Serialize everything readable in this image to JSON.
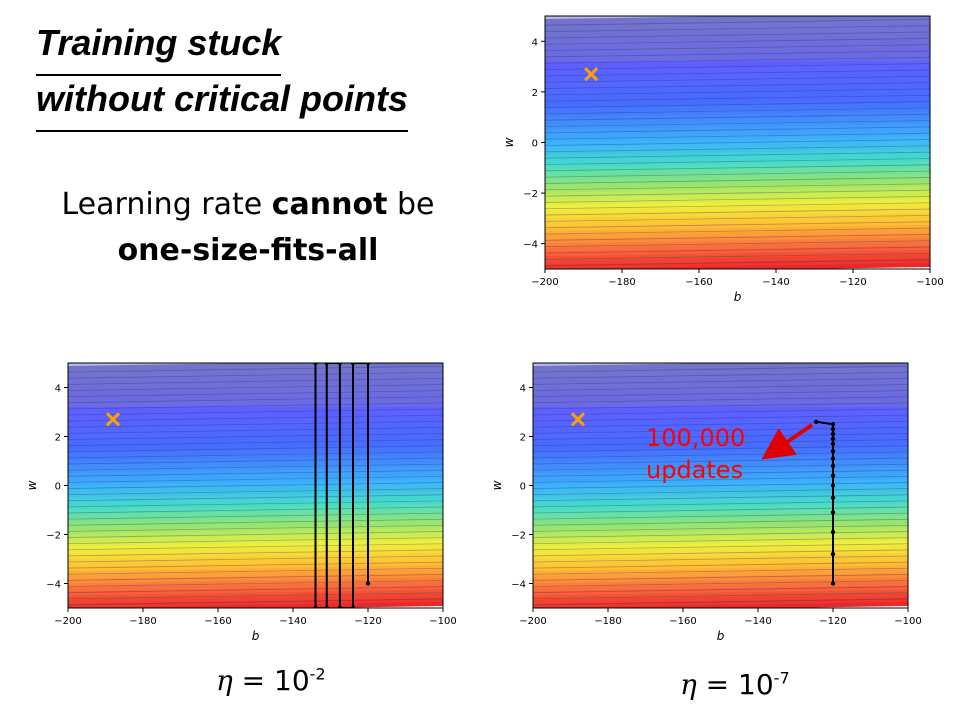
{
  "title": {
    "line1": "Training stuck",
    "line2": "without critical points"
  },
  "subtitle": {
    "part1": "Learning rate ",
    "part2": "cannot",
    "part3": " be",
    "part4": "one-size-fits-all"
  },
  "annotation": {
    "line1": "100,000",
    "line2": "updates",
    "color": "#ff0000"
  },
  "eta_labels": [
    {
      "symbol": "η",
      "eq": " = 10",
      "exp": "-2"
    },
    {
      "symbol": "η",
      "eq": " = 10",
      "exp": "-7"
    }
  ],
  "colors": {
    "marker": "#ffa000",
    "path": "#000000"
  },
  "chart_data": [
    {
      "type": "heatmap",
      "xlabel": "b",
      "ylabel": "w",
      "xlim": [
        -200,
        -100
      ],
      "ylim": [
        -5,
        5
      ],
      "xticks": [
        -200,
        -180,
        -160,
        -140,
        -120,
        -100
      ],
      "yticks": [
        -4,
        -2,
        0,
        2,
        4
      ],
      "minimum": {
        "b": -188,
        "w": 2.7
      },
      "path": []
    },
    {
      "type": "heatmap",
      "xlabel": "b",
      "ylabel": "w",
      "xlim": [
        -200,
        -100
      ],
      "ylim": [
        -5,
        5
      ],
      "xticks": [
        -200,
        -180,
        -160,
        -140,
        -120,
        -100
      ],
      "yticks": [
        -4,
        -2,
        0,
        2,
        4
      ],
      "minimum": {
        "b": -188,
        "w": 2.7
      },
      "path": [
        [
          -120,
          -4
        ],
        [
          -120,
          5
        ],
        [
          -124,
          5
        ],
        [
          -124,
          -5
        ],
        [
          -127.5,
          -5
        ],
        [
          -127.5,
          5
        ],
        [
          -131,
          5
        ],
        [
          -131,
          -5
        ],
        [
          -134,
          -5
        ],
        [
          -134,
          5
        ]
      ]
    },
    {
      "type": "heatmap",
      "xlabel": "b",
      "ylabel": "w",
      "xlim": [
        -200,
        -100
      ],
      "ylim": [
        -5,
        5
      ],
      "xticks": [
        -200,
        -180,
        -160,
        -140,
        -120,
        -100
      ],
      "yticks": [
        -4,
        -2,
        0,
        2,
        4
      ],
      "minimum": {
        "b": -188,
        "w": 2.7
      },
      "path": [
        [
          -120,
          -4
        ],
        [
          -120,
          -2.8
        ],
        [
          -120,
          -1.9
        ],
        [
          -120,
          -1.1
        ],
        [
          -120,
          -0.5
        ],
        [
          -120,
          0.0
        ],
        [
          -120,
          0.4
        ],
        [
          -120,
          0.8
        ],
        [
          -120,
          1.1
        ],
        [
          -120,
          1.4
        ],
        [
          -120,
          1.7
        ],
        [
          -120,
          1.9
        ],
        [
          -120,
          2.1
        ],
        [
          -120,
          2.3
        ],
        [
          -120,
          2.5
        ],
        [
          -124.5,
          2.6
        ]
      ]
    }
  ]
}
